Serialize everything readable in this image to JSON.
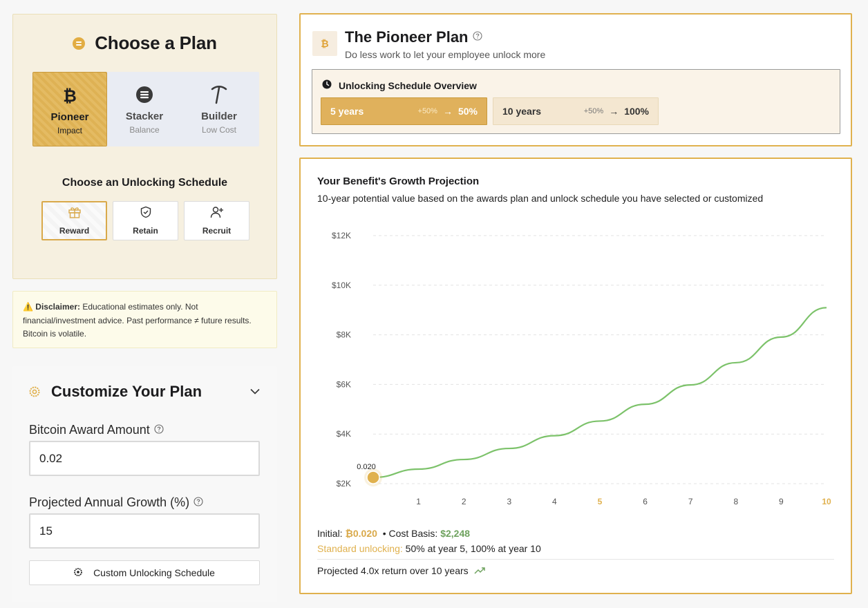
{
  "plan_chooser": {
    "title": "Choose a Plan",
    "plans": [
      {
        "name": "Pioneer",
        "sub": "Impact"
      },
      {
        "name": "Stacker",
        "sub": "Balance"
      },
      {
        "name": "Builder",
        "sub": "Low Cost"
      }
    ],
    "schedule_heading": "Choose an Unlocking Schedule",
    "schedules": [
      {
        "label": "Reward"
      },
      {
        "label": "Retain"
      },
      {
        "label": "Recruit"
      }
    ]
  },
  "disclaimer": {
    "icon": "⚠️",
    "label": "Disclaimer:",
    "text": " Educational estimates only. Not financial/investment advice. Past performance ≠ future results. Bitcoin is volatile."
  },
  "customize": {
    "title": "Customize Your Plan",
    "award_label": "Bitcoin Award Amount",
    "award_value": "0.02",
    "growth_label": "Projected Annual Growth (%)",
    "growth_value": "15",
    "custom_button": "Custom Unlocking Schedule"
  },
  "pioneer": {
    "badge": "₿",
    "title": "The Pioneer Plan",
    "subtitle": "Do less work to let your employee unlock more",
    "overview_title": "Unlocking Schedule Overview",
    "pills": [
      {
        "years": "5 years",
        "delta": "+50%",
        "arrow": "→",
        "pct": "50%"
      },
      {
        "years": "10 years",
        "delta": "+50%",
        "arrow": "→",
        "pct": "100%"
      }
    ]
  },
  "growth": {
    "title": "Your Benefit's Growth Projection",
    "subtitle": "10-year potential value based on the awards plan and unlock schedule you have selected or customized",
    "summary": {
      "initial_label": "Initial:",
      "initial_value": "₿0.020",
      "bullet": "•",
      "cost_label": "Cost Basis:",
      "cost_value": "$2,248",
      "standard_label": "Standard unlocking:",
      "standard_value": "50% at year 5, 100% at year 10",
      "projected": "Projected 4.0x return over 10 years"
    }
  },
  "colors": {
    "accent": "#e0b14e",
    "line": "#7cc26a",
    "point": "#e0b14e"
  },
  "chart_data": {
    "type": "line",
    "title": "Your Benefit's Growth Projection",
    "x": [
      0,
      1,
      2,
      3,
      4,
      5,
      6,
      7,
      8,
      9,
      10
    ],
    "x_tick_labels": [
      "1",
      "2",
      "3",
      "4",
      "5",
      "6",
      "7",
      "8",
      "9",
      "10"
    ],
    "x_highlighted": [
      "5",
      "10"
    ],
    "y_tick_labels": [
      "$2K",
      "$4K",
      "$6K",
      "$8K",
      "$10K",
      "$12K"
    ],
    "y_ticks": [
      2000,
      4000,
      6000,
      8000,
      10000,
      12000
    ],
    "ylim": [
      2000,
      12000
    ],
    "xlim": [
      0,
      10
    ],
    "series": [
      {
        "values": [
          2248,
          2585,
          2973,
          3419,
          3932,
          4522,
          5200,
          5980,
          6877,
          7909,
          9095
        ]
      }
    ],
    "start_point_label": "0.020",
    "grid": true
  }
}
